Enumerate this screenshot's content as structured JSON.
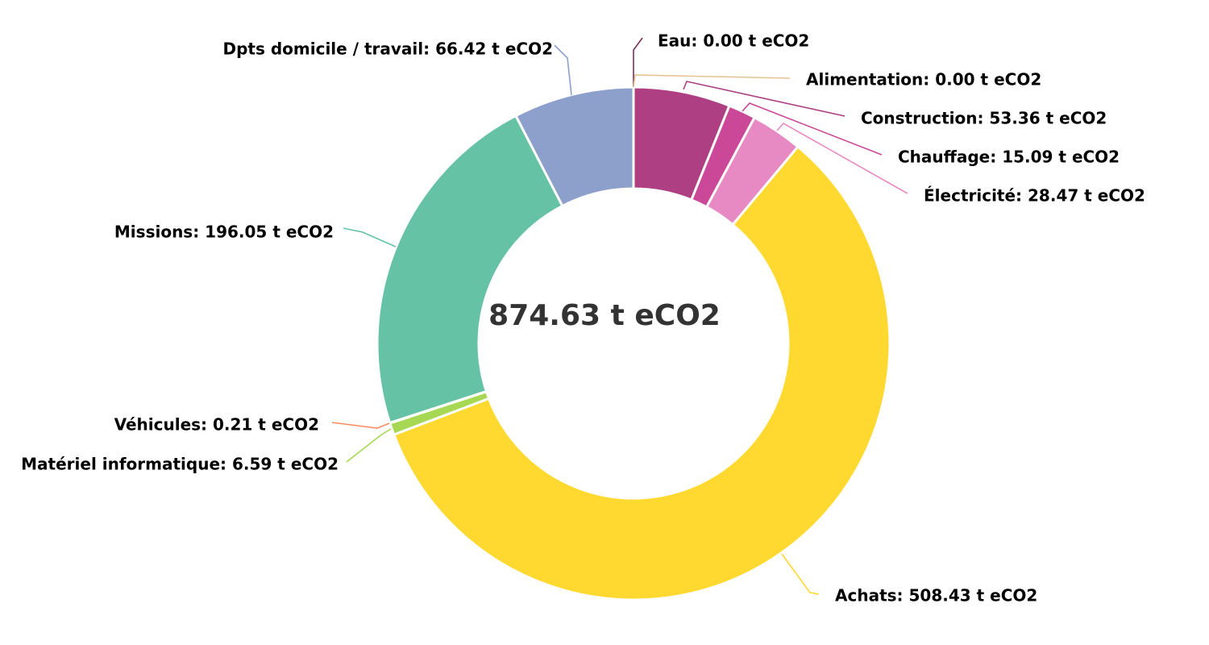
{
  "chart_data": {
    "type": "pie",
    "variant": "donut",
    "center_label": "874.63 t eCO2",
    "unit": "t eCO2",
    "start_angle_deg": 0,
    "direction": "clockwise",
    "slices": [
      {
        "name": "Eau",
        "value": 0.0,
        "label": "Eau: 0.00 t eCO2",
        "color": "#7b2d5d"
      },
      {
        "name": "Alimentation",
        "value": 0.0,
        "label": "Alimentation: 0.00 t eCO2",
        "color": "#e5c494"
      },
      {
        "name": "Construction",
        "value": 53.36,
        "label": "Construction: 53.36 t eCO2",
        "color": "#ad3f82"
      },
      {
        "name": "Chauffage",
        "value": 15.09,
        "label": "Chauffage: 15.09 t eCO2",
        "color": "#cb4899"
      },
      {
        "name": "Électricité",
        "value": 28.47,
        "label": "Électricité: 28.47 t eCO2",
        "color": "#e78ac3"
      },
      {
        "name": "Achats",
        "value": 508.43,
        "label": "Achats: 508.43 t eCO2",
        "color": "#ffd92f"
      },
      {
        "name": "Matériel informatique",
        "value": 6.59,
        "label": "Matériel informatique: 6.59 t eCO2",
        "color": "#a6d854"
      },
      {
        "name": "Véhicules",
        "value": 0.21,
        "label": "Véhicules: 0.21 t eCO2",
        "color": "#fc8d62"
      },
      {
        "name": "Missions",
        "value": 196.05,
        "label": "Missions: 196.05 t eCO2",
        "color": "#66c2a5"
      },
      {
        "name": "Dpts domicile / travail",
        "value": 66.42,
        "label": "Dpts domicile / travail: 66.42 t eCO2",
        "color": "#8da0cb"
      }
    ]
  }
}
